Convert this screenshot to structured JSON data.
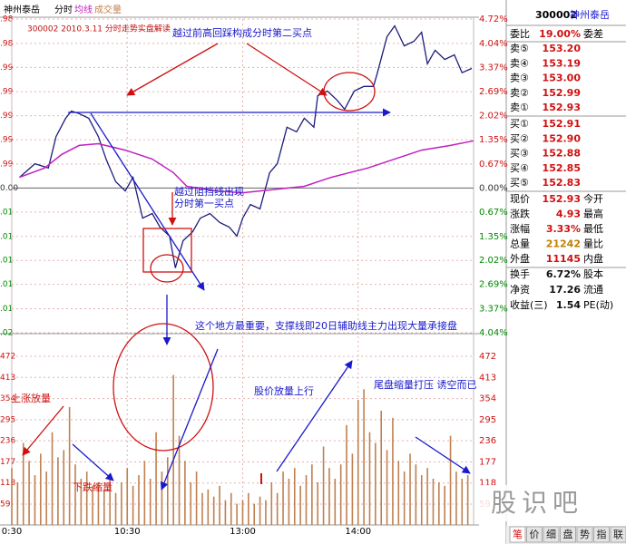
{
  "header": {
    "stock": "神州泰岳",
    "mode": "分时",
    "ma": "均线",
    "volume": "成交量"
  },
  "chart_data": [
    {
      "type": "line",
      "subtitle": "300002  2010.3.11  分时走势实盘解读",
      "xlim": [
        0,
        240
      ],
      "xticks": [
        {
          "value": 0,
          "label": "0:30"
        },
        {
          "value": 60,
          "label": "10:30"
        },
        {
          "value": 120,
          "label": "13:00"
        },
        {
          "value": 180,
          "label": "14:00"
        }
      ],
      "ylim": [
        -4.04,
        4.72
      ],
      "yticks": [
        {
          "value": 4.72,
          "label": "4.72%"
        },
        {
          "value": 4.04,
          "label": "4.04%"
        },
        {
          "value": 3.37,
          "label": "3.37%"
        },
        {
          "value": 2.69,
          "label": "2.69%"
        },
        {
          "value": 2.02,
          "label": "2.02%"
        },
        {
          "value": 1.35,
          "label": "1.35%"
        },
        {
          "value": 0.67,
          "label": "0.67%"
        },
        {
          "value": 0,
          "label": "0.00%"
        },
        {
          "value": -0.67,
          "label": "0.67%"
        },
        {
          "value": -1.35,
          "label": "1.35%"
        },
        {
          "value": -2.02,
          "label": "2.02%"
        },
        {
          "value": -2.69,
          "label": "2.69%"
        },
        {
          "value": -3.37,
          "label": "3.37%"
        },
        {
          "value": -4.04,
          "label": "4.04%"
        }
      ],
      "left_tick_labels": [
        ".98",
        ".98",
        ".99",
        ".99",
        ".99",
        ".99",
        ".99",
        "0.00",
        ".01",
        ".01",
        ".01",
        ".01",
        ".01",
        ".02"
      ],
      "grid": true,
      "series": [
        {
          "name": "分时",
          "color": "#1c1c7a",
          "x": [
            4,
            12,
            19,
            23,
            28,
            31,
            35,
            40,
            45,
            49,
            54,
            59,
            63,
            68,
            73,
            77,
            82,
            85,
            89,
            94,
            98,
            103,
            108,
            113,
            117,
            120,
            124,
            129,
            134,
            138,
            143,
            148,
            152,
            157,
            159,
            164,
            169,
            173,
            178,
            183,
            188,
            190,
            195,
            199,
            204,
            209,
            213,
            216,
            220,
            225,
            230,
            234,
            239
          ],
          "values": [
            0.3,
            0.68,
            0.56,
            1.44,
            1.95,
            2.15,
            2.08,
            1.95,
            1.44,
            0.81,
            0.18,
            -0.08,
            0.3,
            -0.84,
            -0.71,
            -1.09,
            -1.34,
            -2.23,
            -1.47,
            -1.22,
            -0.84,
            -0.71,
            -0.96,
            -1.09,
            -1.34,
            -0.84,
            -0.46,
            -0.58,
            0.43,
            0.68,
            1.7,
            1.57,
            1.95,
            1.7,
            2.58,
            2.71,
            2.46,
            2.2,
            2.71,
            2.84,
            2.84,
            3.22,
            4.23,
            4.53,
            3.97,
            4.1,
            4.35,
            3.47,
            3.85,
            3.59,
            3.72,
            3.22,
            3.34
          ]
        },
        {
          "name": "均线",
          "color": "#c020c0",
          "x": [
            4,
            17,
            26,
            35,
            45,
            59,
            73,
            84,
            91,
            106,
            120,
            138,
            152,
            166,
            185,
            199,
            213,
            228,
            240
          ],
          "values": [
            0.3,
            0.56,
            0.94,
            1.19,
            1.24,
            1.06,
            0.81,
            0.43,
            0.05,
            -0.08,
            -0.13,
            -0.03,
            0.05,
            0.3,
            0.56,
            0.81,
            1.06,
            1.19,
            1.32
          ]
        }
      ],
      "annotations": [
        "越过前高回踩构成分时第二买点",
        "越过阻挡线出现",
        "分时第一买点",
        "这个地方最重要，支撑线即20日辅助线主力出现大量承接盘"
      ]
    },
    {
      "type": "bar",
      "name": "成交量",
      "color": "#c08050",
      "xlim": [
        0,
        240
      ],
      "ylim": [
        0,
        472
      ],
      "yticks": [
        472,
        413,
        354,
        295,
        236,
        177,
        118,
        59
      ],
      "x": [
        0,
        3,
        6,
        9,
        12,
        15,
        18,
        21,
        24,
        27,
        30,
        33,
        36,
        39,
        42,
        45,
        48,
        51,
        54,
        57,
        60,
        63,
        66,
        69,
        72,
        75,
        78,
        81,
        84,
        87,
        90,
        93,
        96,
        99,
        102,
        105,
        108,
        111,
        114,
        117,
        120,
        123,
        126,
        129,
        132,
        135,
        138,
        141,
        144,
        147,
        150,
        153,
        156,
        159,
        162,
        165,
        168,
        171,
        174,
        177,
        180,
        183,
        186,
        189,
        192,
        195,
        198,
        201,
        204,
        207,
        210,
        213,
        216,
        219,
        222,
        225,
        228,
        231,
        234,
        237
      ],
      "values": [
        160,
        120,
        230,
        180,
        140,
        200,
        150,
        260,
        190,
        210,
        330,
        170,
        130,
        150,
        110,
        120,
        100,
        140,
        90,
        120,
        160,
        110,
        140,
        180,
        130,
        260,
        150,
        190,
        420,
        250,
        180,
        120,
        150,
        90,
        100,
        80,
        110,
        70,
        90,
        60,
        70,
        90,
        60,
        80,
        70,
        120,
        90,
        150,
        130,
        160,
        110,
        140,
        170,
        120,
        220,
        160,
        130,
        170,
        280,
        200,
        350,
        380,
        260,
        230,
        320,
        210,
        300,
        180,
        150,
        200,
        170,
        140,
        160,
        130,
        120,
        110,
        250,
        150,
        130,
        140
      ],
      "annotations": [
        "上涨放量",
        "下跌缩量",
        "股价放量上行",
        "尾盘缩量打压  诱空而已"
      ]
    }
  ],
  "quote_panel": {
    "code": "300002",
    "name": "神州泰岳",
    "order_ratio": {
      "label": "委比",
      "value": "19.00%",
      "label2": "委差"
    },
    "asks": [
      {
        "label": "卖⑤",
        "price": "153.20"
      },
      {
        "label": "卖④",
        "price": "153.19"
      },
      {
        "label": "卖③",
        "price": "153.00"
      },
      {
        "label": "卖②",
        "price": "152.99"
      },
      {
        "label": "卖①",
        "price": "152.93"
      }
    ],
    "bids": [
      {
        "label": "买①",
        "price": "152.91"
      },
      {
        "label": "买②",
        "price": "152.90"
      },
      {
        "label": "买③",
        "price": "152.88"
      },
      {
        "label": "买④",
        "price": "152.85"
      },
      {
        "label": "买⑤",
        "price": "152.83"
      }
    ],
    "stats": [
      {
        "label": "现价",
        "value": "152.93",
        "label2": "今开"
      },
      {
        "label": "涨跌",
        "value": "4.93",
        "label2": "最高"
      },
      {
        "label": "涨幅",
        "value": "3.33%",
        "label2": "最低"
      },
      {
        "label": "总量",
        "value": "21242",
        "label2": "量比"
      },
      {
        "label": "外盘",
        "value": "11145",
        "label2": "内盘"
      }
    ],
    "stats2": [
      {
        "label": "换手",
        "value": "6.72%",
        "label2": "股本"
      },
      {
        "label": "净资",
        "value": "17.26",
        "label2": "流通"
      },
      {
        "label": "收益(三)",
        "value": "1.54",
        "label2": "PE(动)"
      }
    ],
    "tabs": [
      "笔",
      "价",
      "细",
      "盘",
      "势",
      "指",
      "联"
    ]
  },
  "watermark": "股识吧"
}
